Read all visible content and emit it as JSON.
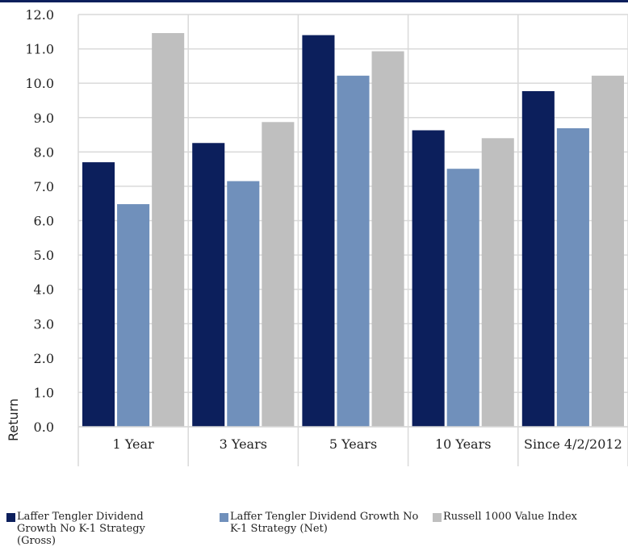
{
  "chart_data": {
    "type": "bar",
    "title": "",
    "xlabel": "",
    "ylabel": "Return",
    "ylim": [
      0,
      12
    ],
    "y_ticks": [
      "0.0",
      "1.0",
      "2.0",
      "3.0",
      "4.0",
      "5.0",
      "6.0",
      "7.0",
      "8.0",
      "9.0",
      "10.0",
      "11.0",
      "12.0"
    ],
    "categories": [
      "1 Year",
      "3 Years",
      "5 Years",
      "10 Years",
      "Since 4/2/2012"
    ],
    "series": [
      {
        "name": "Laffer Tengler Dividend Growth No K-1 Strategy (Gross)",
        "color": "#0c1f5c",
        "values": [
          7.7,
          8.26,
          11.4,
          8.63,
          9.77
        ]
      },
      {
        "name": "Laffer Tengler Dividend Growth No K-1 Strategy (Net)",
        "color": "#7090bb",
        "values": [
          6.48,
          7.15,
          10.22,
          7.51,
          8.69
        ]
      },
      {
        "name": "Russell 1000 Value Index",
        "color": "#bfbfbf",
        "values": [
          11.46,
          8.87,
          10.93,
          8.4,
          10.22
        ]
      }
    ],
    "grid": true,
    "legend_position": "bottom"
  }
}
